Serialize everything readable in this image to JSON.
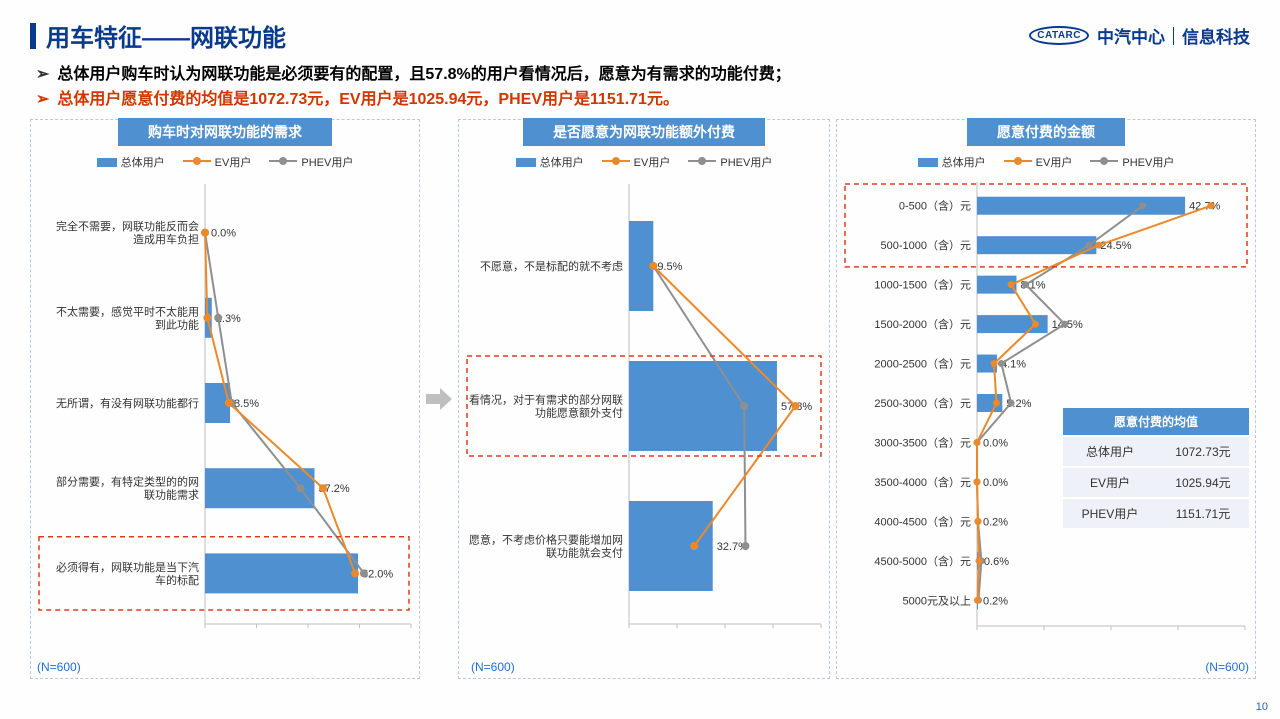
{
  "page": {
    "title": "用车特征——网联功能",
    "page_number": "10",
    "logo": {
      "oval": "CATARC",
      "name": "中汽中心",
      "sub": "信息科技"
    }
  },
  "bullets": [
    {
      "color": "#000000",
      "text": "总体用户购车时认为网联功能是必须要有的配置，且57.8%的用户看情况后，愿意为有需求的功能付费；"
    },
    {
      "color": "#d23600",
      "text": "总体用户愿意付费的均值是1072.73元，EV用户是1025.94元，PHEV用户是1151.71元。"
    }
  ],
  "colors": {
    "bar": "#4f90d0",
    "ev": "#ec8a2b",
    "phev": "#8f8f8f",
    "axis": "#bfbfbf",
    "panel_title_bg": "#4f90d0",
    "red_box": "#e03a1a"
  },
  "legend": {
    "bar": "总体用户",
    "ev": "EV用户",
    "phev": "PHEV用户"
  },
  "chart1": {
    "title": "购车时对网联功能的需求",
    "n": "(N=600)",
    "xmax": 70,
    "rows": [
      {
        "label": [
          "完全不需要，网联功能反而会",
          "造成用车负担"
        ],
        "bar": 0.0,
        "label_v": "0.0%",
        "ev": 0.0,
        "phev": 0.0
      },
      {
        "label": [
          "不太需要，感觉平时不太能用",
          "到此功能"
        ],
        "bar": 2.3,
        "label_v": "2.3%",
        "ev": 0.8,
        "phev": 4.5
      },
      {
        "label": [
          "无所谓，有没有网联功能都行"
        ],
        "bar": 8.5,
        "label_v": "8.5%",
        "ev": 8.1,
        "phev": 9.1
      },
      {
        "label": [
          "部分需要，有特定类型的的网",
          "联功能需求"
        ],
        "bar": 37.2,
        "label_v": "37.2%",
        "ev": 40.1,
        "phev": 32.4
      },
      {
        "label": [
          "必须得有，网联功能是当下汽",
          "车的标配"
        ],
        "bar": 52.0,
        "label_v": "52.0%",
        "ev": 51.0,
        "phev": 54.0
      }
    ],
    "highlight_row": 4
  },
  "chart2": {
    "title": "是否愿意为网联功能额外付费",
    "n": "(N=600)",
    "xmax": 75,
    "rows": [
      {
        "label": [
          "不愿意，不是标配的就不考虑"
        ],
        "bar": 9.5,
        "label_v": "9.5%",
        "ev": 9.5,
        "phev": 9.5
      },
      {
        "label": [
          "看情况，对于有需求的部分网联",
          "功能愿意额外支付"
        ],
        "bar": 57.8,
        "label_v": "57.8%",
        "ev": 65.0,
        "phev": 45.0
      },
      {
        "label": [
          "愿意，不考虑价格只要能增加网",
          "联功能就会支付"
        ],
        "bar": 32.7,
        "label_v": "32.7%",
        "ev": 25.5,
        "phev": 45.5
      }
    ],
    "highlight_row": 1
  },
  "chart3": {
    "title": "愿意付费的金额",
    "n": "(N=600)",
    "xmax": 55,
    "rows": [
      {
        "label": "0-500（含）元",
        "bar": 42.7,
        "label_v": "42.7%",
        "ev": 48,
        "phev": 34
      },
      {
        "label": "500-1000（含）元",
        "bar": 24.5,
        "label_v": "24.5%",
        "ev": 25,
        "phev": 23
      },
      {
        "label": "1000-1500（含）元",
        "bar": 8.1,
        "label_v": "8.1%",
        "ev": 7,
        "phev": 10
      },
      {
        "label": "1500-2000（含）元",
        "bar": 14.5,
        "label_v": "14.5%",
        "ev": 12,
        "phev": 18
      },
      {
        "label": "2000-2500（含）元",
        "bar": 4.1,
        "label_v": "4.1%",
        "ev": 3.5,
        "phev": 5
      },
      {
        "label": "2500-3000（含）元",
        "bar": 5.2,
        "label_v": "5.2%",
        "ev": 4,
        "phev": 7
      },
      {
        "label": "3000-3500（含）元",
        "bar": 0.0,
        "label_v": "0.0%",
        "ev": 0,
        "phev": 0
      },
      {
        "label": "3500-4000（含）元",
        "bar": 0.0,
        "label_v": "0.0%",
        "ev": 0,
        "phev": 0
      },
      {
        "label": "4000-4500（含）元",
        "bar": 0.2,
        "label_v": "0.2%",
        "ev": 0.2,
        "phev": 0.2
      },
      {
        "label": "4500-5000（含）元",
        "bar": 0.6,
        "label_v": "0.6%",
        "ev": 0.4,
        "phev": 0.9
      },
      {
        "label": "5000元及以上",
        "bar": 0.2,
        "label_v": "0.2%",
        "ev": 0.1,
        "phev": 0.3
      }
    ],
    "highlight_rows": [
      0,
      1
    ]
  },
  "avg_table": {
    "title": "愿意付费的均值",
    "rows": [
      {
        "k": "总体用户",
        "v": "1072.73元"
      },
      {
        "k": "EV用户",
        "v": "1025.94元"
      },
      {
        "k": "PHEV用户",
        "v": "1151.71元"
      }
    ]
  }
}
